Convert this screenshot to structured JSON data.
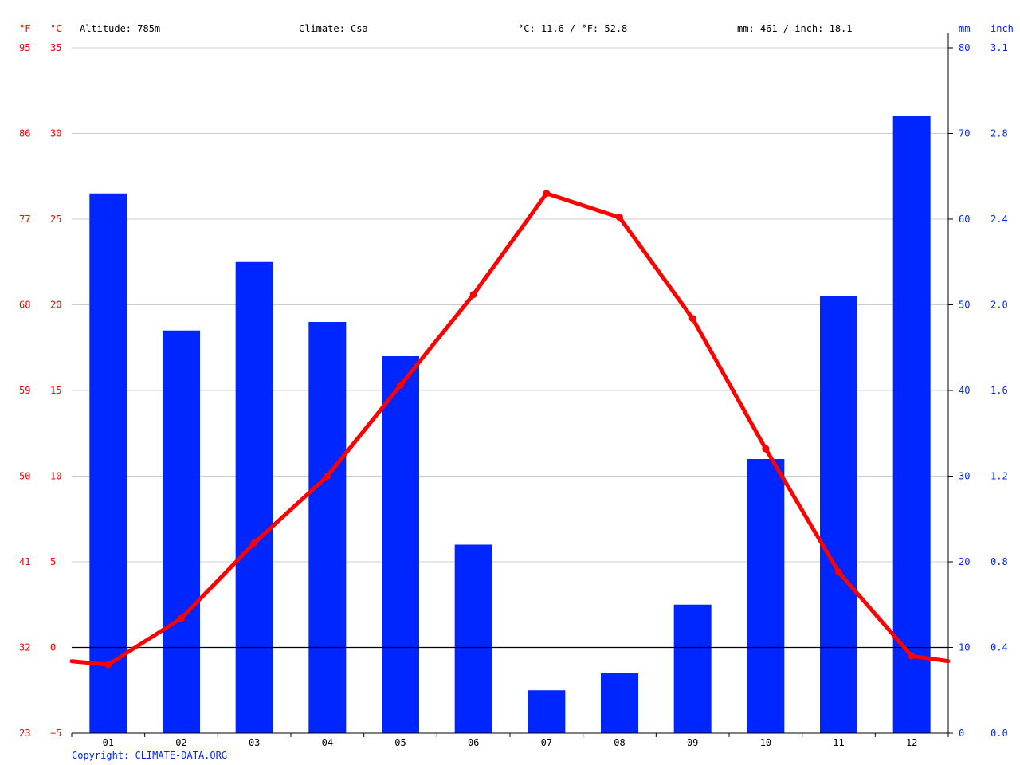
{
  "header": {
    "fahrenheit_unit": "°F",
    "celsius_unit": "°C",
    "altitude": "Altitude: 785m",
    "climate": "Climate: Csa",
    "mean_temp": "°C: 11.6 / °F: 52.8",
    "precip_total": "mm: 461 / inch: 18.1",
    "mm_unit": "mm",
    "inch_unit": "inch"
  },
  "footer": {
    "copyright": "Copyright: CLIMATE-DATA.ORG"
  },
  "chart_data": {
    "type": "bar",
    "categories": [
      "01",
      "02",
      "03",
      "04",
      "05",
      "06",
      "07",
      "08",
      "09",
      "10",
      "11",
      "12"
    ],
    "series": [
      {
        "type": "bar",
        "axis": "right",
        "color": "#0026ff",
        "values": [
          63,
          47,
          55,
          48,
          44,
          22,
          5,
          7,
          15,
          32,
          51,
          72
        ]
      },
      {
        "type": "line",
        "axis": "left",
        "color": "#ff0000",
        "values": [
          -1.0,
          1.7,
          6.1,
          10.0,
          15.3,
          20.6,
          26.5,
          25.1,
          19.2,
          11.6,
          4.4,
          -0.5
        ]
      }
    ],
    "left_axis": {
      "unit": "°C",
      "range": [
        -5,
        35
      ],
      "ticks": [
        "35",
        "30",
        "25",
        "20",
        "15",
        "10",
        "5",
        "0",
        "−5"
      ],
      "fahrenheit_ticks": [
        "95",
        "86",
        "77",
        "68",
        "59",
        "50",
        "41",
        "32",
        "23"
      ]
    },
    "right_axis": {
      "unit": "mm",
      "range": [
        0,
        80
      ],
      "ticks": [
        "80",
        "70",
        "60",
        "50",
        "40",
        "30",
        "20",
        "10",
        "0"
      ],
      "inch_ticks": [
        "3.1",
        "2.8",
        "2.4",
        "2.0",
        "1.6",
        "1.2",
        "0.8",
        "0.4",
        "0.0"
      ]
    },
    "line_edges": [
      -0.8,
      -0.8
    ],
    "grid": true,
    "colors": {
      "precip": "#0026ff",
      "temp": "#ff0000",
      "zero_line": "#000000"
    }
  }
}
